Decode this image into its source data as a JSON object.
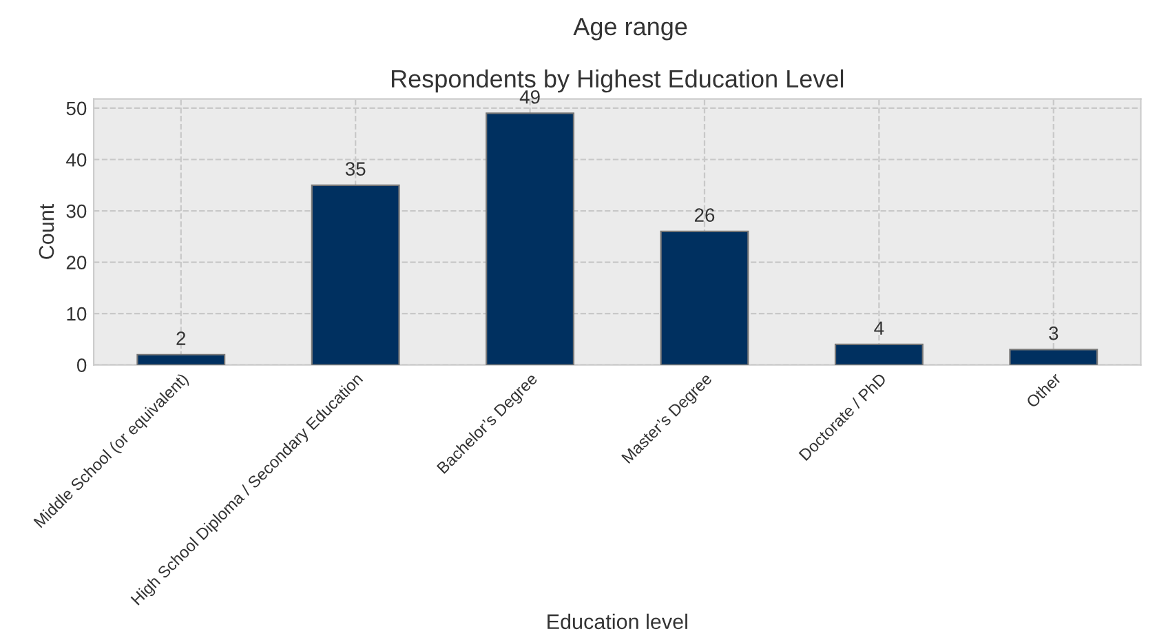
{
  "chart_data": {
    "type": "bar",
    "title": "Respondents by Highest Education Level",
    "xlabel": "Education level",
    "ylabel": "Count",
    "annotations": [
      "Age range"
    ],
    "categories": [
      "Middle School (or equivalent)",
      "High School Diploma / Secondary Education",
      "Bachelor’s Degree",
      "Master’s Degree",
      "Doctorate / PhD",
      "Other"
    ],
    "values": [
      2,
      35,
      49,
      26,
      4,
      3
    ],
    "color": "#003060",
    "ylim": [
      0,
      51.8
    ],
    "yticks": [
      0,
      10,
      20,
      30,
      40,
      50
    ],
    "grid": true,
    "data_labels": true
  }
}
